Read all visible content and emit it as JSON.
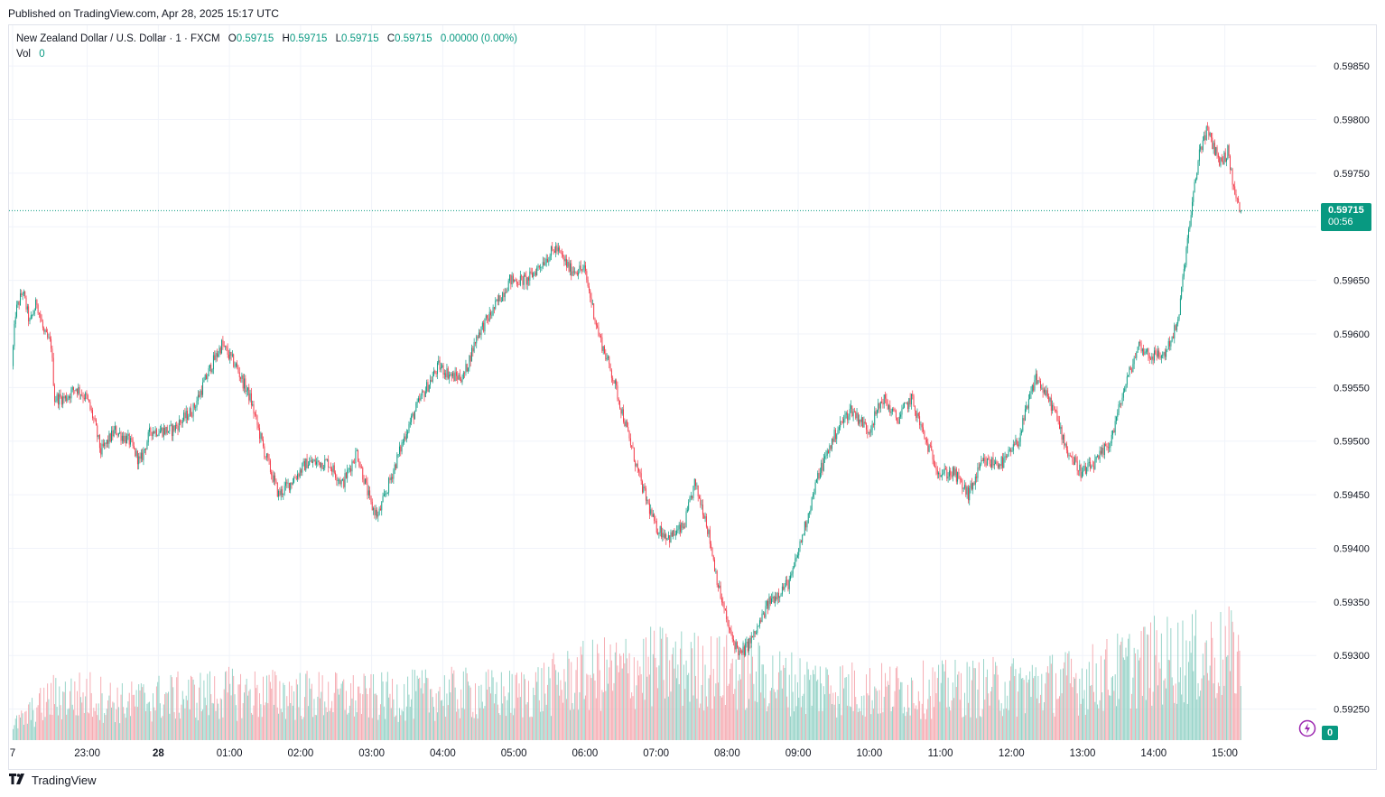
{
  "header": {
    "published": "Published on TradingView.com, Apr 28, 2025 15:17 UTC"
  },
  "legend": {
    "symbol": "New Zealand Dollar / U.S. Dollar · 1 · FXCM",
    "o_label": "O",
    "o": "0.59715",
    "h_label": "H",
    "h": "0.59715",
    "l_label": "L",
    "l": "0.59715",
    "c_label": "C",
    "c": "0.59715",
    "change": "0.00000 (0.00%)",
    "vol_label": "Vol",
    "vol": "0"
  },
  "price_badge": {
    "price": "0.59715",
    "countdown": "00:56"
  },
  "volume_badge": "0",
  "footer": {
    "brand": "TradingView"
  },
  "colors": {
    "up": "#089981",
    "down": "#f23645",
    "up_vol": "#8fd0c4",
    "down_vol": "#f5a6ad",
    "grid": "#f0f3fa"
  },
  "chart_data": {
    "type": "candlestick",
    "y_axis": {
      "ticks": [
        "0.59850",
        "0.59800",
        "0.59750",
        "0.59700",
        "0.59650",
        "0.59600",
        "0.59550",
        "0.59500",
        "0.59450",
        "0.59400",
        "0.59350",
        "0.59300",
        "0.59250"
      ],
      "tick_values": [
        0.5985,
        0.598,
        0.5975,
        0.597,
        0.5965,
        0.596,
        0.5955,
        0.595,
        0.5945,
        0.594,
        0.5935,
        0.593,
        0.5925
      ],
      "ylim": [
        0.59221,
        0.59888
      ]
    },
    "x_axis": {
      "ticks": [
        "7",
        "23:00",
        "28",
        "01:00",
        "02:00",
        "03:00",
        "04:00",
        "05:00",
        "06:00",
        "07:00",
        "08:00",
        "09:00",
        "10:00",
        "11:00",
        "12:00",
        "13:00",
        "14:00",
        "15:00"
      ],
      "tick_hours": [
        -2.05,
        -1,
        0,
        1,
        2,
        3,
        4,
        5,
        6,
        7,
        8,
        9,
        10,
        11,
        12,
        13,
        14,
        15
      ],
      "xlim_hours": [
        -2.1,
        16.25
      ]
    },
    "last_price": 0.59715,
    "price_path": [
      [
        -2.05,
        0.5957
      ],
      [
        -2.0,
        0.5962
      ],
      [
        -1.9,
        0.5964
      ],
      [
        -1.8,
        0.5961
      ],
      [
        -1.7,
        0.5963
      ],
      [
        -1.6,
        0.596
      ],
      [
        -1.5,
        0.5959
      ],
      [
        -1.45,
        0.5954
      ],
      [
        -1.3,
        0.5954
      ],
      [
        -1.15,
        0.5955
      ],
      [
        -1.0,
        0.5954
      ],
      [
        -0.9,
        0.5952
      ],
      [
        -0.8,
        0.5949
      ],
      [
        -0.6,
        0.5951
      ],
      [
        -0.4,
        0.595
      ],
      [
        -0.25,
        0.5948
      ],
      [
        -0.1,
        0.5951
      ],
      [
        0.2,
        0.5951
      ],
      [
        0.5,
        0.5953
      ],
      [
        0.75,
        0.5957
      ],
      [
        0.9,
        0.5959
      ],
      [
        1.1,
        0.5957
      ],
      [
        1.3,
        0.5954
      ],
      [
        1.5,
        0.5949
      ],
      [
        1.7,
        0.5945
      ],
      [
        1.85,
        0.5946
      ],
      [
        2.1,
        0.5948
      ],
      [
        2.4,
        0.5948
      ],
      [
        2.6,
        0.5946
      ],
      [
        2.8,
        0.5949
      ],
      [
        3.0,
        0.5944
      ],
      [
        3.1,
        0.5943
      ],
      [
        3.3,
        0.5947
      ],
      [
        3.5,
        0.5951
      ],
      [
        3.7,
        0.5954
      ],
      [
        3.95,
        0.5957
      ],
      [
        4.15,
        0.5956
      ],
      [
        4.3,
        0.5956
      ],
      [
        4.5,
        0.596
      ],
      [
        4.7,
        0.5962
      ],
      [
        4.95,
        0.5965
      ],
      [
        5.2,
        0.5965
      ],
      [
        5.45,
        0.5967
      ],
      [
        5.6,
        0.5968
      ],
      [
        5.8,
        0.5966
      ],
      [
        6.0,
        0.5966
      ],
      [
        6.2,
        0.596
      ],
      [
        6.4,
        0.5956
      ],
      [
        6.6,
        0.5951
      ],
      [
        6.8,
        0.5946
      ],
      [
        7.0,
        0.5942
      ],
      [
        7.2,
        0.5941
      ],
      [
        7.4,
        0.5942
      ],
      [
        7.55,
        0.5946
      ],
      [
        7.7,
        0.5943
      ],
      [
        7.9,
        0.5936
      ],
      [
        8.05,
        0.5932
      ],
      [
        8.2,
        0.593
      ],
      [
        8.4,
        0.5932
      ],
      [
        8.6,
        0.5935
      ],
      [
        8.9,
        0.5937
      ],
      [
        9.1,
        0.5942
      ],
      [
        9.3,
        0.5947
      ],
      [
        9.55,
        0.5951
      ],
      [
        9.75,
        0.5953
      ],
      [
        10.0,
        0.5951
      ],
      [
        10.2,
        0.5954
      ],
      [
        10.4,
        0.5952
      ],
      [
        10.6,
        0.5954
      ],
      [
        10.8,
        0.595
      ],
      [
        11.0,
        0.5947
      ],
      [
        11.2,
        0.5947
      ],
      [
        11.4,
        0.5945
      ],
      [
        11.6,
        0.5948
      ],
      [
        11.9,
        0.5948
      ],
      [
        12.1,
        0.595
      ],
      [
        12.35,
        0.5956
      ],
      [
        12.6,
        0.5953
      ],
      [
        12.8,
        0.5949
      ],
      [
        13.0,
        0.5947
      ],
      [
        13.2,
        0.5948
      ],
      [
        13.4,
        0.595
      ],
      [
        13.6,
        0.5955
      ],
      [
        13.8,
        0.5959
      ],
      [
        13.95,
        0.5958
      ],
      [
        14.15,
        0.5958
      ],
      [
        14.35,
        0.5961
      ],
      [
        14.45,
        0.5967
      ],
      [
        14.55,
        0.5972
      ],
      [
        14.65,
        0.5977
      ],
      [
        14.75,
        0.5979
      ],
      [
        14.95,
        0.5976
      ],
      [
        15.05,
        0.5977
      ],
      [
        15.15,
        0.5973
      ],
      [
        15.22,
        0.59715
      ]
    ],
    "volume": {
      "ylim": [
        0,
        1200
      ],
      "levels_by_hour": [
        [
          -2.05,
          100
        ],
        [
          -1.5,
          300
        ],
        [
          -1.0,
          320
        ],
        [
          -0.5,
          260
        ],
        [
          0,
          300
        ],
        [
          1,
          330
        ],
        [
          2,
          320
        ],
        [
          3,
          300
        ],
        [
          4,
          330
        ],
        [
          5,
          320
        ],
        [
          6,
          450
        ],
        [
          7,
          520
        ],
        [
          8,
          480
        ],
        [
          9,
          400
        ],
        [
          10,
          350
        ],
        [
          11,
          360
        ],
        [
          12,
          380
        ],
        [
          13,
          420
        ],
        [
          14,
          560
        ],
        [
          15,
          600
        ],
        [
          15.22,
          600
        ]
      ]
    }
  }
}
